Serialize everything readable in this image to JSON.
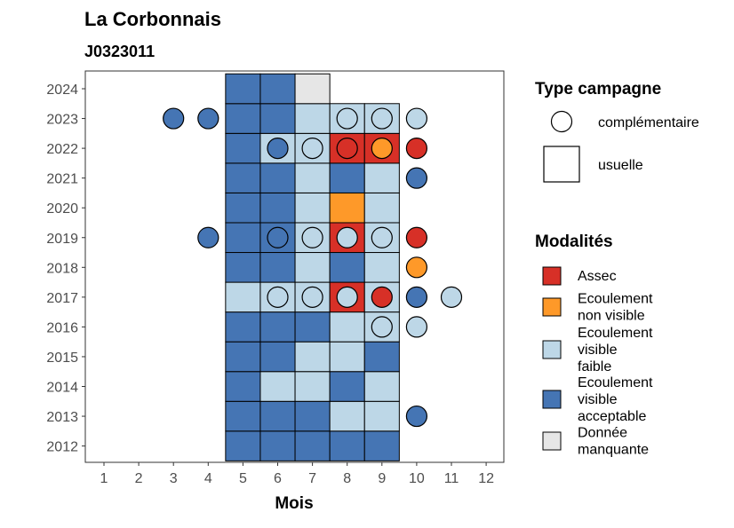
{
  "title": "La Corbonnais",
  "subtitle": "J0323011",
  "chart_data": {
    "type": "heatmap",
    "title": "La Corbonnais",
    "subtitle": "J0323011",
    "xlabel": "Mois",
    "ylabel": "",
    "x_ticks": [
      "1",
      "2",
      "3",
      "4",
      "5",
      "6",
      "7",
      "8",
      "9",
      "10",
      "11",
      "12"
    ],
    "y_ticks": [
      "2012",
      "2013",
      "2014",
      "2015",
      "2016",
      "2017",
      "2018",
      "2019",
      "2020",
      "2021",
      "2022",
      "2023",
      "2024"
    ],
    "grid": false,
    "modalites": [
      {
        "key": "assec",
        "label_lines": [
          "Assec"
        ],
        "color": "#d73027"
      },
      {
        "key": "nonvisible",
        "label_lines": [
          "Ecoulement",
          "non visible"
        ],
        "color": "#fe9929"
      },
      {
        "key": "faible",
        "label_lines": [
          "Ecoulement",
          "visible",
          "faible"
        ],
        "color": "#bdd7e7"
      },
      {
        "key": "acceptable",
        "label_lines": [
          "Ecoulement",
          "visible",
          "acceptable"
        ],
        "color": "#4575b4"
      },
      {
        "key": "manquante",
        "label_lines": [
          "Donnée",
          "manquante"
        ],
        "color": "#e6e6e6"
      }
    ],
    "campagne_types": [
      {
        "key": "complementaire",
        "label": "complémentaire",
        "shape": "circle"
      },
      {
        "key": "usuelle",
        "label": "usuelle",
        "shape": "square"
      }
    ],
    "legend_titles": {
      "campagne": "Type campagne",
      "modalites": "Modalités"
    },
    "legend_position": "right",
    "usuelle": [
      {
        "year": 2012,
        "month": 5,
        "m": "acceptable"
      },
      {
        "year": 2012,
        "month": 6,
        "m": "acceptable"
      },
      {
        "year": 2012,
        "month": 7,
        "m": "acceptable"
      },
      {
        "year": 2012,
        "month": 8,
        "m": "acceptable"
      },
      {
        "year": 2012,
        "month": 9,
        "m": "acceptable"
      },
      {
        "year": 2013,
        "month": 5,
        "m": "acceptable"
      },
      {
        "year": 2013,
        "month": 6,
        "m": "acceptable"
      },
      {
        "year": 2013,
        "month": 7,
        "m": "acceptable"
      },
      {
        "year": 2013,
        "month": 8,
        "m": "faible"
      },
      {
        "year": 2013,
        "month": 9,
        "m": "faible"
      },
      {
        "year": 2014,
        "month": 5,
        "m": "acceptable"
      },
      {
        "year": 2014,
        "month": 6,
        "m": "faible"
      },
      {
        "year": 2014,
        "month": 7,
        "m": "faible"
      },
      {
        "year": 2014,
        "month": 8,
        "m": "acceptable"
      },
      {
        "year": 2014,
        "month": 9,
        "m": "faible"
      },
      {
        "year": 2015,
        "month": 5,
        "m": "acceptable"
      },
      {
        "year": 2015,
        "month": 6,
        "m": "acceptable"
      },
      {
        "year": 2015,
        "month": 7,
        "m": "faible"
      },
      {
        "year": 2015,
        "month": 8,
        "m": "faible"
      },
      {
        "year": 2015,
        "month": 9,
        "m": "acceptable"
      },
      {
        "year": 2016,
        "month": 5,
        "m": "acceptable"
      },
      {
        "year": 2016,
        "month": 6,
        "m": "acceptable"
      },
      {
        "year": 2016,
        "month": 7,
        "m": "acceptable"
      },
      {
        "year": 2016,
        "month": 8,
        "m": "faible"
      },
      {
        "year": 2016,
        "month": 9,
        "m": "faible"
      },
      {
        "year": 2017,
        "month": 5,
        "m": "faible"
      },
      {
        "year": 2017,
        "month": 6,
        "m": "faible"
      },
      {
        "year": 2017,
        "month": 7,
        "m": "faible"
      },
      {
        "year": 2017,
        "month": 8,
        "m": "assec"
      },
      {
        "year": 2017,
        "month": 9,
        "m": "faible"
      },
      {
        "year": 2018,
        "month": 5,
        "m": "acceptable"
      },
      {
        "year": 2018,
        "month": 6,
        "m": "acceptable"
      },
      {
        "year": 2018,
        "month": 7,
        "m": "faible"
      },
      {
        "year": 2018,
        "month": 8,
        "m": "acceptable"
      },
      {
        "year": 2018,
        "month": 9,
        "m": "faible"
      },
      {
        "year": 2019,
        "month": 5,
        "m": "acceptable"
      },
      {
        "year": 2019,
        "month": 6,
        "m": "acceptable"
      },
      {
        "year": 2019,
        "month": 7,
        "m": "faible"
      },
      {
        "year": 2019,
        "month": 8,
        "m": "assec"
      },
      {
        "year": 2019,
        "month": 9,
        "m": "faible"
      },
      {
        "year": 2020,
        "month": 5,
        "m": "acceptable"
      },
      {
        "year": 2020,
        "month": 6,
        "m": "acceptable"
      },
      {
        "year": 2020,
        "month": 7,
        "m": "faible"
      },
      {
        "year": 2020,
        "month": 8,
        "m": "nonvisible"
      },
      {
        "year": 2020,
        "month": 9,
        "m": "faible"
      },
      {
        "year": 2021,
        "month": 5,
        "m": "acceptable"
      },
      {
        "year": 2021,
        "month": 6,
        "m": "acceptable"
      },
      {
        "year": 2021,
        "month": 7,
        "m": "faible"
      },
      {
        "year": 2021,
        "month": 8,
        "m": "acceptable"
      },
      {
        "year": 2021,
        "month": 9,
        "m": "faible"
      },
      {
        "year": 2022,
        "month": 5,
        "m": "acceptable"
      },
      {
        "year": 2022,
        "month": 6,
        "m": "faible"
      },
      {
        "year": 2022,
        "month": 7,
        "m": "faible"
      },
      {
        "year": 2022,
        "month": 8,
        "m": "assec"
      },
      {
        "year": 2022,
        "month": 9,
        "m": "assec"
      },
      {
        "year": 2023,
        "month": 5,
        "m": "acceptable"
      },
      {
        "year": 2023,
        "month": 6,
        "m": "acceptable"
      },
      {
        "year": 2023,
        "month": 7,
        "m": "faible"
      },
      {
        "year": 2023,
        "month": 8,
        "m": "faible"
      },
      {
        "year": 2023,
        "month": 9,
        "m": "faible"
      },
      {
        "year": 2024,
        "month": 5,
        "m": "acceptable"
      },
      {
        "year": 2024,
        "month": 6,
        "m": "acceptable"
      },
      {
        "year": 2024,
        "month": 7,
        "m": "manquante"
      }
    ],
    "complementaire": [
      {
        "year": 2013,
        "month": 10,
        "m": "acceptable"
      },
      {
        "year": 2016,
        "month": 9,
        "m": "faible"
      },
      {
        "year": 2016,
        "month": 10,
        "m": "faible"
      },
      {
        "year": 2017,
        "month": 6,
        "m": "faible"
      },
      {
        "year": 2017,
        "month": 7,
        "m": "faible"
      },
      {
        "year": 2017,
        "month": 8,
        "m": "faible"
      },
      {
        "year": 2017,
        "month": 9,
        "m": "assec"
      },
      {
        "year": 2017,
        "month": 10,
        "m": "acceptable"
      },
      {
        "year": 2017,
        "month": 11,
        "m": "faible"
      },
      {
        "year": 2018,
        "month": 10,
        "m": "nonvisible"
      },
      {
        "year": 2019,
        "month": 4,
        "m": "acceptable"
      },
      {
        "year": 2019,
        "month": 6,
        "m": "acceptable"
      },
      {
        "year": 2019,
        "month": 7,
        "m": "faible"
      },
      {
        "year": 2019,
        "month": 8,
        "m": "faible"
      },
      {
        "year": 2019,
        "month": 9,
        "m": "faible"
      },
      {
        "year": 2019,
        "month": 10,
        "m": "assec"
      },
      {
        "year": 2021,
        "month": 10,
        "m": "acceptable"
      },
      {
        "year": 2022,
        "month": 6,
        "m": "acceptable"
      },
      {
        "year": 2022,
        "month": 7,
        "m": "faible"
      },
      {
        "year": 2022,
        "month": 8,
        "m": "assec"
      },
      {
        "year": 2022,
        "month": 9,
        "m": "nonvisible"
      },
      {
        "year": 2022,
        "month": 10,
        "m": "assec"
      },
      {
        "year": 2023,
        "month": 3,
        "m": "acceptable"
      },
      {
        "year": 2023,
        "month": 4,
        "m": "acceptable"
      },
      {
        "year": 2023,
        "month": 8,
        "m": "faible"
      },
      {
        "year": 2023,
        "month": 9,
        "m": "faible"
      },
      {
        "year": 2023,
        "month": 10,
        "m": "faible"
      }
    ]
  }
}
